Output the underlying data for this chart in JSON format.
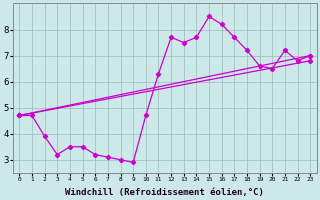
{
  "background_color": "#cce8e8",
  "grid_color": "#99bbbb",
  "line_color": "#cc00cc",
  "xlabel": "Windchill (Refroidissement éolien,°C)",
  "xlabel_fontsize": 6.5,
  "xlim": [
    -0.5,
    23.5
  ],
  "ylim": [
    2.5,
    9.0
  ],
  "xticks": [
    0,
    1,
    2,
    3,
    4,
    5,
    6,
    7,
    8,
    9,
    10,
    11,
    12,
    13,
    14,
    15,
    16,
    17,
    18,
    19,
    20,
    21,
    22,
    23
  ],
  "yticks": [
    3,
    4,
    5,
    6,
    7,
    8
  ],
  "line_main": [
    [
      0,
      4.7
    ],
    [
      1,
      4.7
    ],
    [
      2,
      3.9
    ],
    [
      3,
      3.2
    ],
    [
      4,
      3.5
    ],
    [
      5,
      3.5
    ],
    [
      6,
      3.2
    ],
    [
      7,
      3.1
    ],
    [
      8,
      3.0
    ],
    [
      9,
      2.9
    ],
    [
      10,
      4.7
    ],
    [
      11,
      6.3
    ],
    [
      12,
      7.7
    ],
    [
      13,
      7.5
    ],
    [
      14,
      7.7
    ],
    [
      15,
      8.5
    ],
    [
      16,
      8.2
    ],
    [
      17,
      7.7
    ],
    [
      18,
      7.2
    ],
    [
      19,
      6.6
    ],
    [
      20,
      6.5
    ],
    [
      21,
      7.2
    ],
    [
      22,
      6.8
    ],
    [
      23,
      7.0
    ]
  ],
  "line_reg1": [
    [
      0,
      4.7
    ],
    [
      23,
      7.0
    ]
  ],
  "line_reg2": [
    [
      0,
      4.7
    ],
    [
      23,
      6.8
    ]
  ],
  "spine_color": "#888888"
}
